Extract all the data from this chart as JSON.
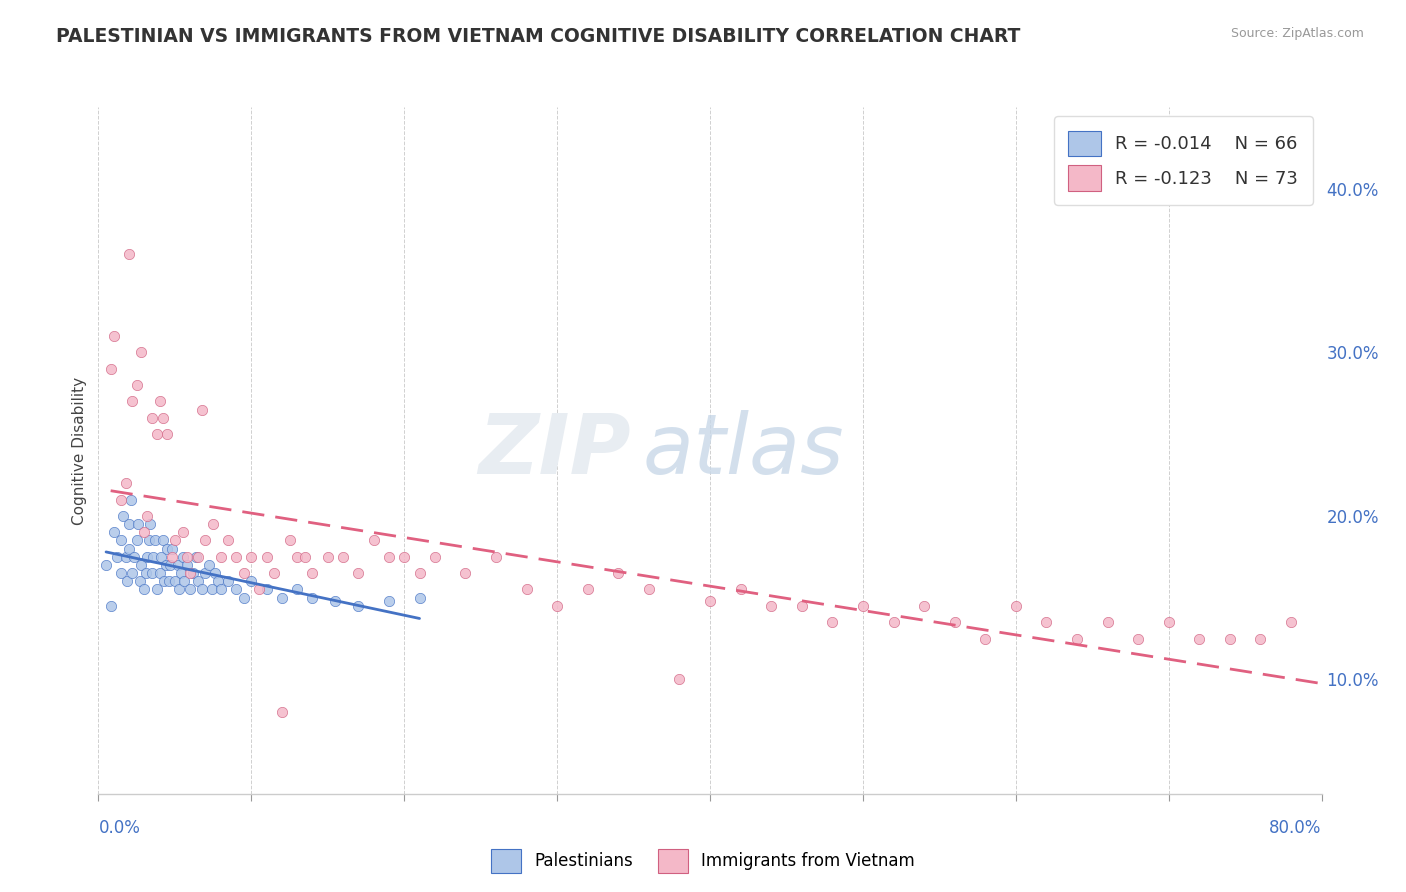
{
  "title": "PALESTINIAN VS IMMIGRANTS FROM VIETNAM COGNITIVE DISABILITY CORRELATION CHART",
  "source": "Source: ZipAtlas.com",
  "ylabel": "Cognitive Disability",
  "right_yticks": [
    0.1,
    0.2,
    0.3,
    0.4
  ],
  "right_yticklabels": [
    "10.0%",
    "20.0%",
    "30.0%",
    "40.0%"
  ],
  "xmin": 0.0,
  "xmax": 0.8,
  "ymin": 0.03,
  "ymax": 0.45,
  "blue_scatter_color": "#aec6e8",
  "blue_edge_color": "#4472c4",
  "pink_scatter_color": "#f4b8c8",
  "pink_edge_color": "#d06080",
  "blue_line_color": "#4472c4",
  "pink_line_color": "#e06080",
  "legend_r1": "R = -0.014",
  "legend_n1": "N = 66",
  "legend_r2": "R = -0.123",
  "legend_n2": "N = 73",
  "palestinians_x": [
    0.005,
    0.008,
    0.01,
    0.012,
    0.015,
    0.015,
    0.016,
    0.018,
    0.019,
    0.02,
    0.02,
    0.021,
    0.022,
    0.023,
    0.025,
    0.026,
    0.027,
    0.028,
    0.03,
    0.031,
    0.032,
    0.033,
    0.034,
    0.035,
    0.036,
    0.037,
    0.038,
    0.04,
    0.041,
    0.042,
    0.043,
    0.044,
    0.045,
    0.046,
    0.047,
    0.048,
    0.05,
    0.052,
    0.053,
    0.054,
    0.055,
    0.056,
    0.058,
    0.06,
    0.062,
    0.064,
    0.065,
    0.068,
    0.07,
    0.072,
    0.074,
    0.076,
    0.078,
    0.08,
    0.085,
    0.09,
    0.095,
    0.1,
    0.11,
    0.12,
    0.13,
    0.14,
    0.155,
    0.17,
    0.19,
    0.21
  ],
  "palestinians_y": [
    0.17,
    0.145,
    0.19,
    0.175,
    0.165,
    0.185,
    0.2,
    0.175,
    0.16,
    0.18,
    0.195,
    0.21,
    0.165,
    0.175,
    0.185,
    0.195,
    0.16,
    0.17,
    0.155,
    0.165,
    0.175,
    0.185,
    0.195,
    0.165,
    0.175,
    0.185,
    0.155,
    0.165,
    0.175,
    0.185,
    0.16,
    0.17,
    0.18,
    0.16,
    0.17,
    0.18,
    0.16,
    0.17,
    0.155,
    0.165,
    0.175,
    0.16,
    0.17,
    0.155,
    0.165,
    0.175,
    0.16,
    0.155,
    0.165,
    0.17,
    0.155,
    0.165,
    0.16,
    0.155,
    0.16,
    0.155,
    0.15,
    0.16,
    0.155,
    0.15,
    0.155,
    0.15,
    0.148,
    0.145,
    0.148,
    0.15
  ],
  "vietnam_x": [
    0.008,
    0.01,
    0.015,
    0.018,
    0.02,
    0.022,
    0.025,
    0.028,
    0.03,
    0.032,
    0.035,
    0.038,
    0.04,
    0.042,
    0.045,
    0.048,
    0.05,
    0.055,
    0.058,
    0.06,
    0.065,
    0.068,
    0.07,
    0.075,
    0.08,
    0.085,
    0.09,
    0.095,
    0.1,
    0.105,
    0.11,
    0.115,
    0.12,
    0.125,
    0.13,
    0.135,
    0.14,
    0.15,
    0.16,
    0.17,
    0.18,
    0.19,
    0.2,
    0.21,
    0.22,
    0.24,
    0.26,
    0.28,
    0.3,
    0.32,
    0.34,
    0.36,
    0.38,
    0.4,
    0.42,
    0.44,
    0.46,
    0.48,
    0.5,
    0.52,
    0.54,
    0.56,
    0.58,
    0.6,
    0.62,
    0.64,
    0.66,
    0.68,
    0.7,
    0.72,
    0.74,
    0.76,
    0.78
  ],
  "vietnam_y": [
    0.29,
    0.31,
    0.21,
    0.22,
    0.36,
    0.27,
    0.28,
    0.3,
    0.19,
    0.2,
    0.26,
    0.25,
    0.27,
    0.26,
    0.25,
    0.175,
    0.185,
    0.19,
    0.175,
    0.165,
    0.175,
    0.265,
    0.185,
    0.195,
    0.175,
    0.185,
    0.175,
    0.165,
    0.175,
    0.155,
    0.175,
    0.165,
    0.08,
    0.185,
    0.175,
    0.175,
    0.165,
    0.175,
    0.175,
    0.165,
    0.185,
    0.175,
    0.175,
    0.165,
    0.175,
    0.165,
    0.175,
    0.155,
    0.145,
    0.155,
    0.165,
    0.155,
    0.1,
    0.148,
    0.155,
    0.145,
    0.145,
    0.135,
    0.145,
    0.135,
    0.145,
    0.135,
    0.125,
    0.145,
    0.135,
    0.125,
    0.135,
    0.125,
    0.135,
    0.125,
    0.125,
    0.125,
    0.135
  ]
}
